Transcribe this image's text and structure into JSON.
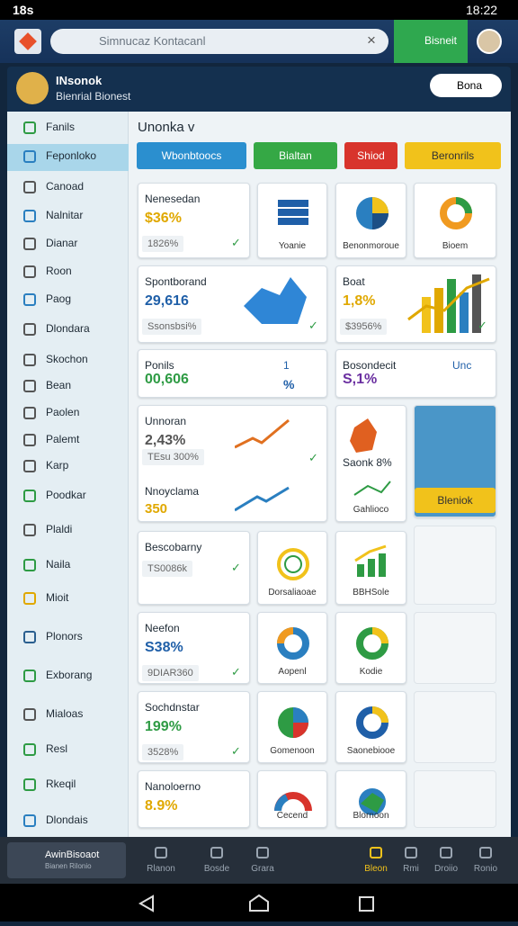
{
  "status_bar": {
    "left": "18s",
    "time": "18:22"
  },
  "top_bar": {
    "search_placeholder": "Simnucaz Kontacanl",
    "button": "Bisneit"
  },
  "header": {
    "title": "INsonok",
    "subtitle": "Bienrial Bionest",
    "button": "Bona"
  },
  "sidebar": {
    "items": [
      "Fanils",
      "Feponloko",
      "Canoad",
      "Nalnitar",
      "Dianar",
      "Roon",
      "Paog",
      "Dlondara",
      "Skochon",
      "Bean",
      "Paolen",
      "Palemt",
      "Karp",
      "Poodkar",
      "Plaldi",
      "Naila",
      "Mioit",
      "Plonors",
      "Exborang",
      "Mialoas",
      "Resl",
      "Rkeqil",
      "Dlondais"
    ]
  },
  "main": {
    "heading": "Unonka v",
    "tabs": [
      "Wbonbtoocs",
      "Bialtan",
      "Shiod",
      "Beronrils"
    ],
    "cards": [
      {
        "title": "Nenesedan",
        "value": "$36%",
        "note": "1826%"
      },
      {
        "label": "Yoanie"
      },
      {
        "label": "Benonmoroue"
      },
      {
        "label": "Bioem"
      },
      {
        "title": "Spontborand",
        "value": "29,616",
        "note": "Ssonsbsi%"
      },
      {
        "title": "Boat",
        "value": "1,8%",
        "note": "$3956%"
      },
      {
        "title": "Ponils",
        "value": "00,606",
        "badge": "1",
        "unit": "%"
      },
      {
        "title": "Bosondecit",
        "value": "S,1%",
        "badge": "Unc"
      },
      {
        "title": "Unnoran",
        "value": "2,43%",
        "note": "TEsu 300%",
        "title2": "Nnoyclama",
        "value2": "350"
      },
      {
        "title": "Saonk 8%",
        "label": "Gahlioco"
      },
      {
        "button": "Bleniok"
      },
      {
        "title": "Bescobarny",
        "note": "TS0086k"
      },
      {
        "label": "Dorsaliaoae"
      },
      {
        "label": "BBHSole"
      },
      {
        "title": "Neefon",
        "value": "S38%",
        "note": "9DIAR360"
      },
      {
        "label": "Aopenl"
      },
      {
        "label": "Kodie"
      },
      {
        "title": "Sochdnstar",
        "value": "199%",
        "note": "3528%"
      },
      {
        "label": "Gomenoon"
      },
      {
        "label": "Saonebiooe"
      },
      {
        "title": "Nanoloerno",
        "value": "8.9%"
      },
      {
        "label": "Cecend"
      },
      {
        "label": "Blornoon"
      }
    ]
  },
  "bottom_nav": {
    "profile": {
      "title": "AwinBisoaot",
      "subtitle": "Bianen Rilonio"
    },
    "items": [
      "Rlanon",
      "Bosde",
      "Grara",
      "Bleon",
      "Rmi",
      "Droiio",
      "Ronio"
    ]
  }
}
